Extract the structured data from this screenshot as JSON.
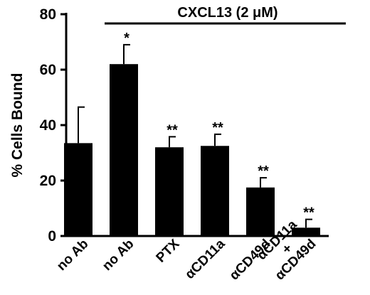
{
  "chart_data": {
    "type": "bar",
    "title": "",
    "xlabel": "",
    "ylabel": "% Cells Bound",
    "ylim": [
      0,
      80
    ],
    "yticks": [
      "0",
      "20",
      "40",
      "60",
      "80"
    ],
    "categories": [
      "no Ab",
      "no Ab",
      "PTX",
      "αCD11a",
      "αCD49d",
      "αCD11a + αCD49d"
    ],
    "category_lines": [
      [
        "no Ab"
      ],
      [
        "no Ab"
      ],
      [
        "PTX"
      ],
      [
        "αCD11a"
      ],
      [
        "αCD49d"
      ],
      [
        "αCD11a",
        "+",
        "αCD49d"
      ]
    ],
    "values": [
      33.5,
      62,
      32,
      32.5,
      17.5,
      3
    ],
    "errors": [
      13,
      7,
      3.8,
      4.2,
      3.5,
      3
    ],
    "significance": [
      "",
      "*",
      "**",
      "**",
      "**",
      "**"
    ],
    "treatment_bracket": {
      "label": "CXCL13 (2 μM)",
      "covers": [
        1,
        5
      ]
    },
    "colors": {
      "bar": "#000000",
      "background": "#ffffff"
    }
  }
}
